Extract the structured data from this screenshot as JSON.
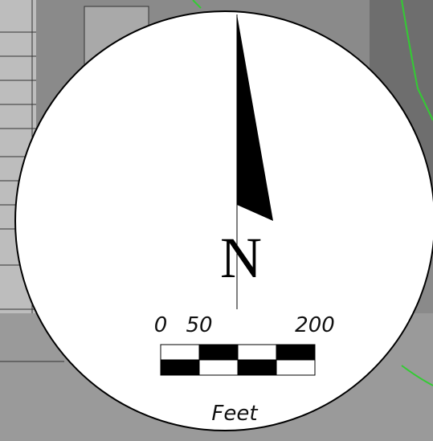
{
  "north_arrow": {
    "label": "N"
  },
  "scale_bar": {
    "ticks": [
      0,
      50,
      200
    ],
    "unit": "Feet"
  }
}
